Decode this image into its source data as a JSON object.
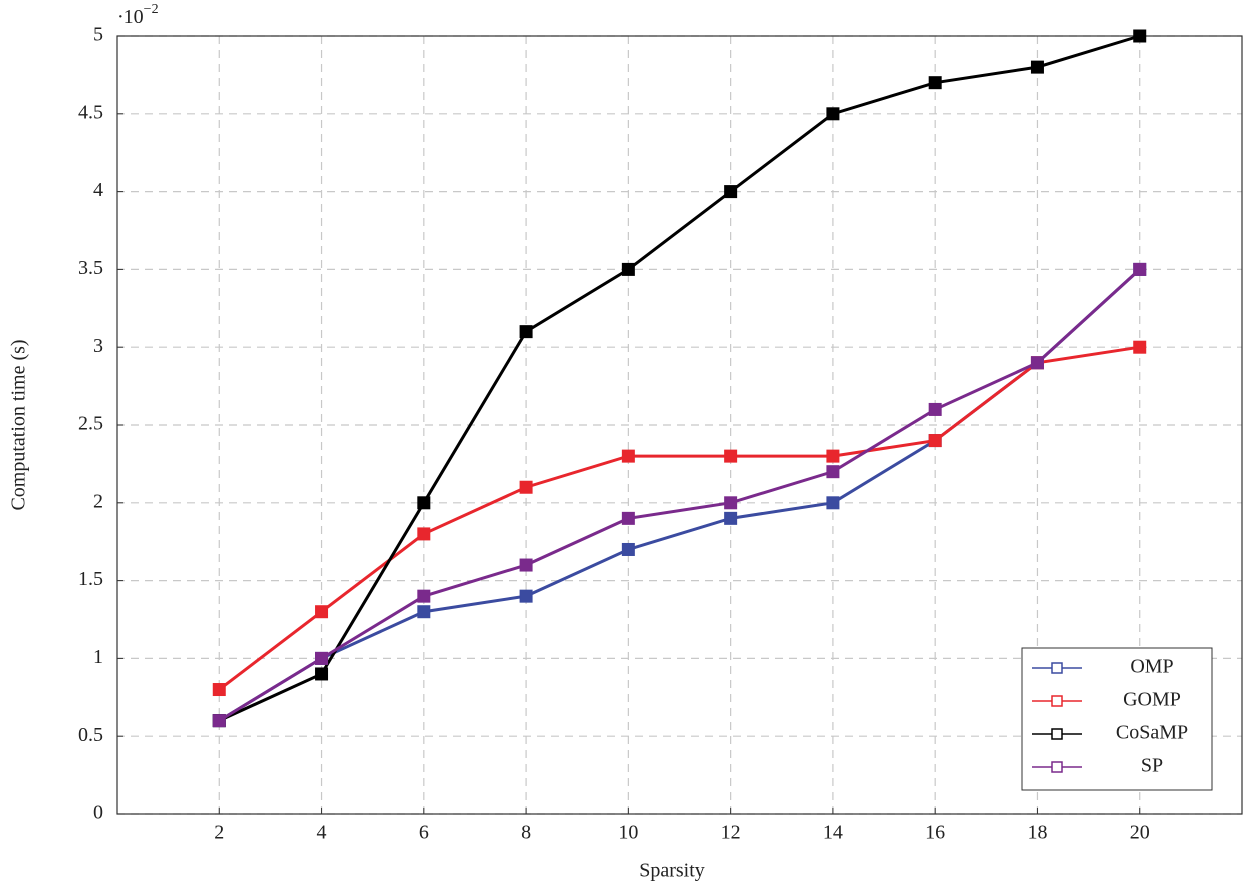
{
  "chart_data": {
    "type": "line",
    "x_label": "Sparsity",
    "y_label": "Computation time (s)",
    "y_multiplier_base": "·10",
    "y_multiplier_exponent": "−2",
    "x": [
      2,
      4,
      6,
      8,
      10,
      12,
      14,
      16,
      18,
      20
    ],
    "series": [
      {
        "name": "OMP",
        "color": "#3b4ba0",
        "values": [
          0.6,
          1.0,
          1.3,
          1.4,
          1.7,
          1.9,
          2.0,
          2.4,
          2.9,
          3.5
        ]
      },
      {
        "name": "GOMP",
        "color": "#e8262d",
        "values": [
          0.8,
          1.3,
          1.8,
          2.1,
          2.3,
          2.3,
          2.3,
          2.4,
          2.9,
          3.0
        ]
      },
      {
        "name": "CoSaMP",
        "color": "#000000",
        "values": [
          0.6,
          0.9,
          2.0,
          3.1,
          3.5,
          4.0,
          4.5,
          4.7,
          4.8,
          5.0
        ]
      },
      {
        "name": "SP",
        "color": "#7a2a8c",
        "values": [
          0.6,
          1.0,
          1.4,
          1.6,
          1.9,
          2.0,
          2.2,
          2.6,
          2.9,
          3.5
        ]
      }
    ],
    "xlim": [
      0,
      22
    ],
    "xticks": [
      2,
      4,
      6,
      8,
      10,
      12,
      14,
      16,
      18,
      20
    ],
    "ylim": [
      0,
      5
    ],
    "yticks": [
      0,
      0.5,
      1,
      1.5,
      2,
      2.5,
      3,
      3.5,
      4,
      4.5,
      5
    ],
    "grid": true,
    "legend": "bottom-right"
  }
}
